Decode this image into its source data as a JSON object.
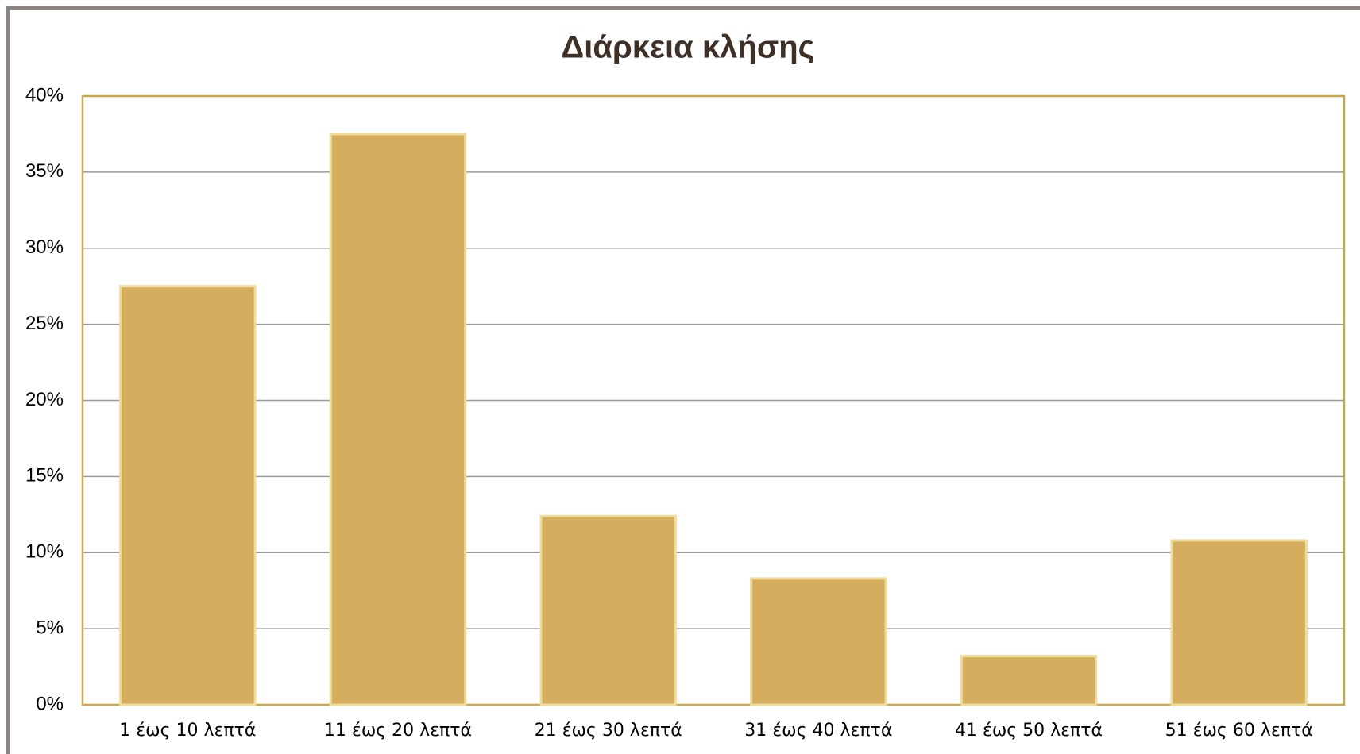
{
  "chart_data": {
    "type": "bar",
    "title": "Διάρκεια κλήσης",
    "categories": [
      "1 έως 10 λεπτά",
      "11 έως 20 λεπτά",
      "21 έως 30 λεπτά",
      "31 έως 40 λεπτά",
      "41 έως 50 λεπτά",
      "51 έως 60 λεπτά"
    ],
    "values": [
      27.5,
      37.5,
      12.4,
      8.3,
      3.2,
      10.8
    ],
    "color": "#d4ae5e",
    "ylim": [
      0,
      40
    ],
    "yticks": [
      {
        "value": 0,
        "label": "0%"
      },
      {
        "value": 5,
        "label": "5%"
      },
      {
        "value": 10,
        "label": "10%"
      },
      {
        "value": 15,
        "label": "15%"
      },
      {
        "value": 20,
        "label": "20%"
      },
      {
        "value": 25,
        "label": "25%"
      },
      {
        "value": 30,
        "label": "30%"
      },
      {
        "value": 35,
        "label": "35%"
      },
      {
        "value": 40,
        "label": "40%"
      }
    ],
    "grid": true
  }
}
